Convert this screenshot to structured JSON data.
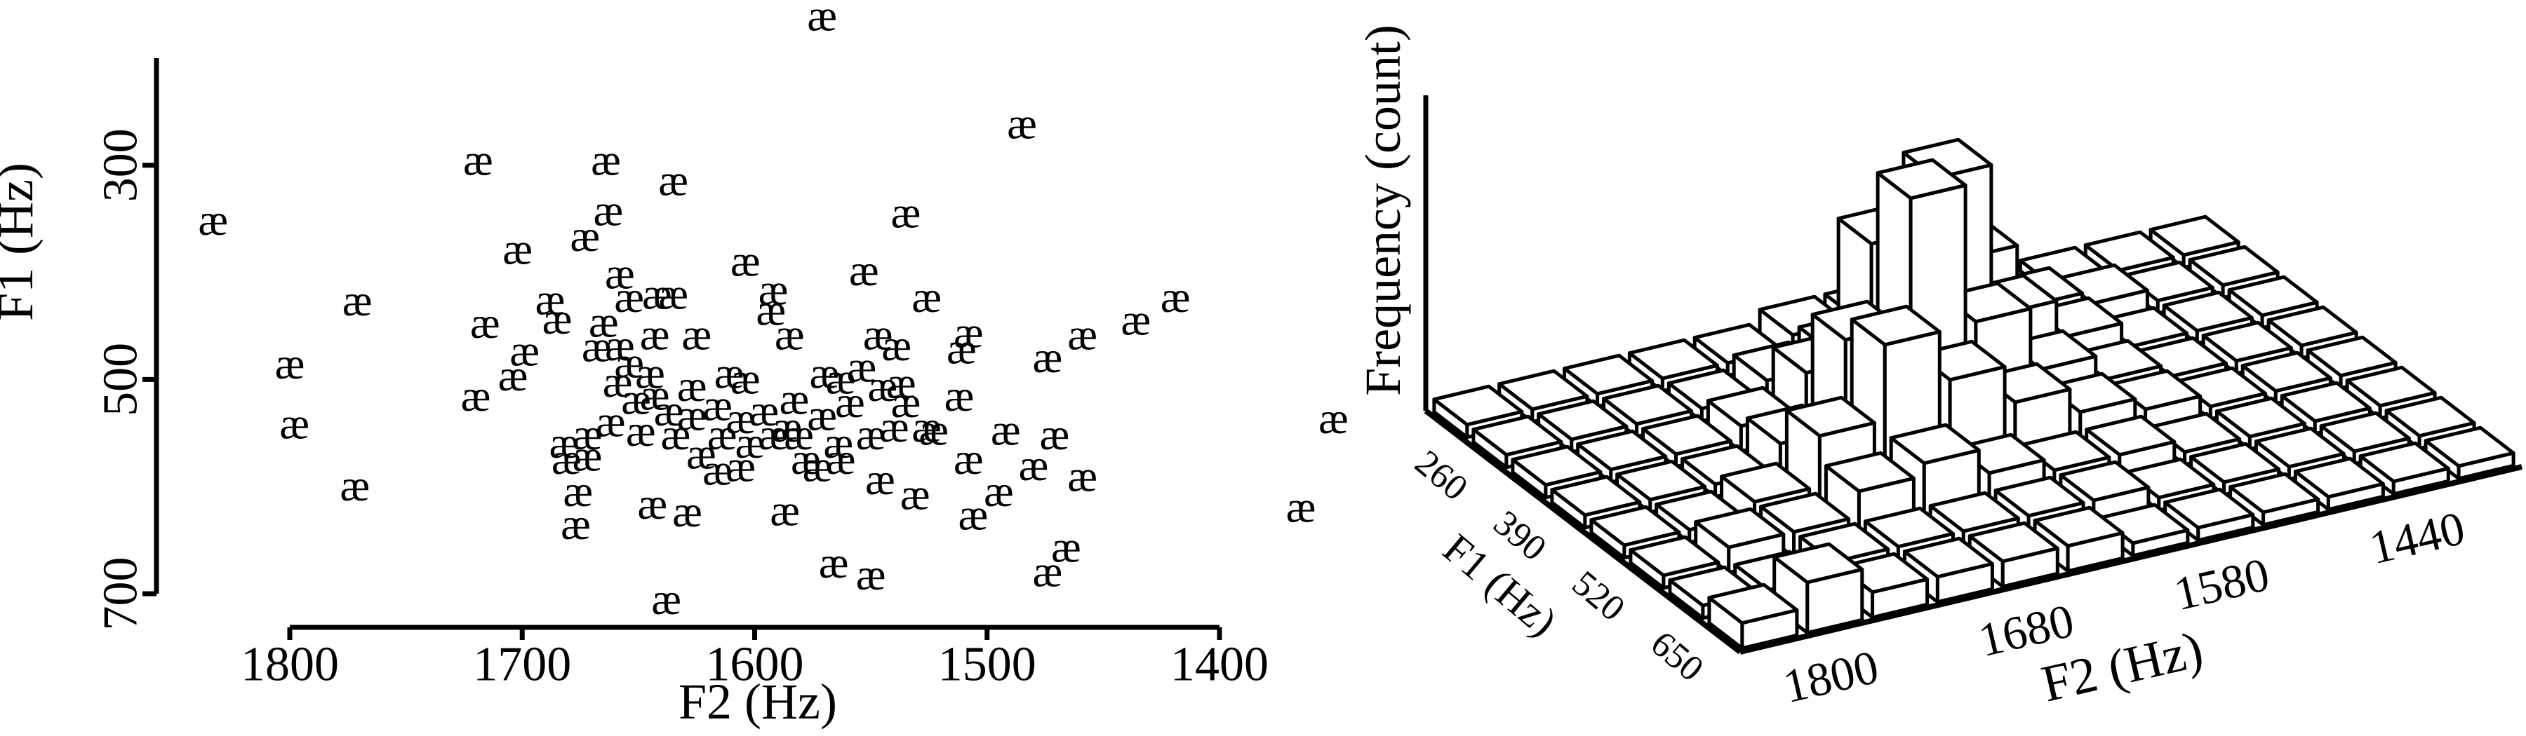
{
  "chart_data": [
    {
      "type": "scatter",
      "marker": "æ",
      "xlabel": "F2 (Hz)",
      "ylabel": "F1 (Hz)",
      "xlim": [
        1800,
        1400
      ],
      "ylim": [
        700,
        200
      ],
      "xticks": [
        1800,
        1700,
        1600,
        1500,
        1400
      ],
      "yticks": [
        300,
        500,
        700
      ],
      "x": [
        1833,
        1571,
        1485,
        1719,
        1664,
        1635,
        1663,
        1535,
        1702,
        1673,
        1604,
        1553,
        1771,
        1688,
        1658,
        1592,
        1526,
        1419,
        1436,
        1716,
        1800,
        1798,
        1772,
        1720,
        1704,
        1699,
        1685,
        1547,
        1508,
        1459,
        1474,
        1511,
        1512,
        1365,
        1351,
        1638,
        1566,
        1550,
        1474,
        1466,
        1587,
        1506,
        1495,
        1531,
        1546,
        1629,
        1644,
        1677,
        1676,
        1681,
        1459,
        1480,
        1471,
        1492,
        1508,
        1523,
        1654,
        1642,
        1635,
        1665,
        1658,
        1643,
        1625,
        1611,
        1604,
        1585,
        1593,
        1659,
        1643,
        1627,
        1616,
        1606,
        1596,
        1583,
        1571,
        1563,
        1554,
        1545,
        1537,
        1526,
        1540,
        1550,
        1564,
        1578,
        1592,
        1602,
        1614,
        1623,
        1634,
        1649,
        1662,
        1672,
        1682,
        1672,
        1616,
        1606,
        1573,
        1563,
        1581,
        1627,
        1637,
        1651,
        1654,
        1668,
        1645,
        1535,
        1539,
        1559,
        1570,
        1586
      ],
      "y": [
        351,
        160,
        261,
        295,
        295,
        314,
        342,
        344,
        378,
        366,
        389,
        398,
        426,
        425,
        401,
        416,
        423,
        423,
        444,
        447,
        485,
        541,
        599,
        515,
        496,
        473,
        443,
        458,
        456,
        458,
        479,
        471,
        515,
        619,
        536,
        705,
        671,
        682,
        679,
        656,
        622,
        626,
        604,
        607,
        593,
        623,
        616,
        635,
        604,
        574,
        590,
        580,
        551,
        547,
        574,
        547,
        423,
        420,
        420,
        446,
        468,
        458,
        458,
        494,
        499,
        458,
        435,
        502,
        514,
        506,
        524,
        536,
        529,
        518,
        533,
        499,
        488,
        506,
        503,
        544,
        544,
        551,
        559,
        574,
        551,
        559,
        551,
        569,
        551,
        548,
        539,
        551,
        559,
        571,
        584,
        581,
        581,
        574,
        551,
        533,
        529,
        518,
        484,
        469,
        494,
        521,
        468,
        521,
        494,
        544
      ]
    },
    {
      "type": "bar3d",
      "xlabel": "F2 (Hz)",
      "ylabel": "F1 (Hz)",
      "zlabel": "Frequency (count)",
      "x_categories": [
        null,
        "1800",
        null,
        null,
        "1680",
        null,
        null,
        "1580",
        null,
        null,
        "1440",
        null
      ],
      "y_categories": [
        null,
        "260",
        null,
        "390",
        null,
        "520",
        null,
        "650"
      ],
      "zlim": [
        0,
        25
      ],
      "counts": [
        [
          1,
          1,
          1,
          1,
          1,
          2,
          2,
          4,
          1,
          1,
          1,
          1
        ],
        [
          1,
          1,
          1,
          1,
          2,
          3,
          5,
          8,
          3,
          2,
          1,
          1
        ],
        [
          1,
          1,
          1,
          2,
          5,
          14,
          18,
          6,
          3,
          1,
          1,
          1
        ],
        [
          1,
          1,
          1,
          3,
          10,
          20,
          9,
          4,
          2,
          1,
          1,
          1
        ],
        [
          1,
          1,
          2,
          6,
          12,
          8,
          5,
          3,
          2,
          1,
          1,
          1
        ],
        [
          1,
          2,
          2,
          4,
          5,
          3,
          2,
          2,
          1,
          1,
          1,
          1
        ],
        [
          1,
          1,
          2,
          2,
          2,
          2,
          2,
          1,
          1,
          1,
          1,
          1
        ],
        [
          2,
          4,
          2,
          2,
          2,
          2,
          1,
          1,
          1,
          1,
          1,
          1
        ]
      ]
    }
  ]
}
